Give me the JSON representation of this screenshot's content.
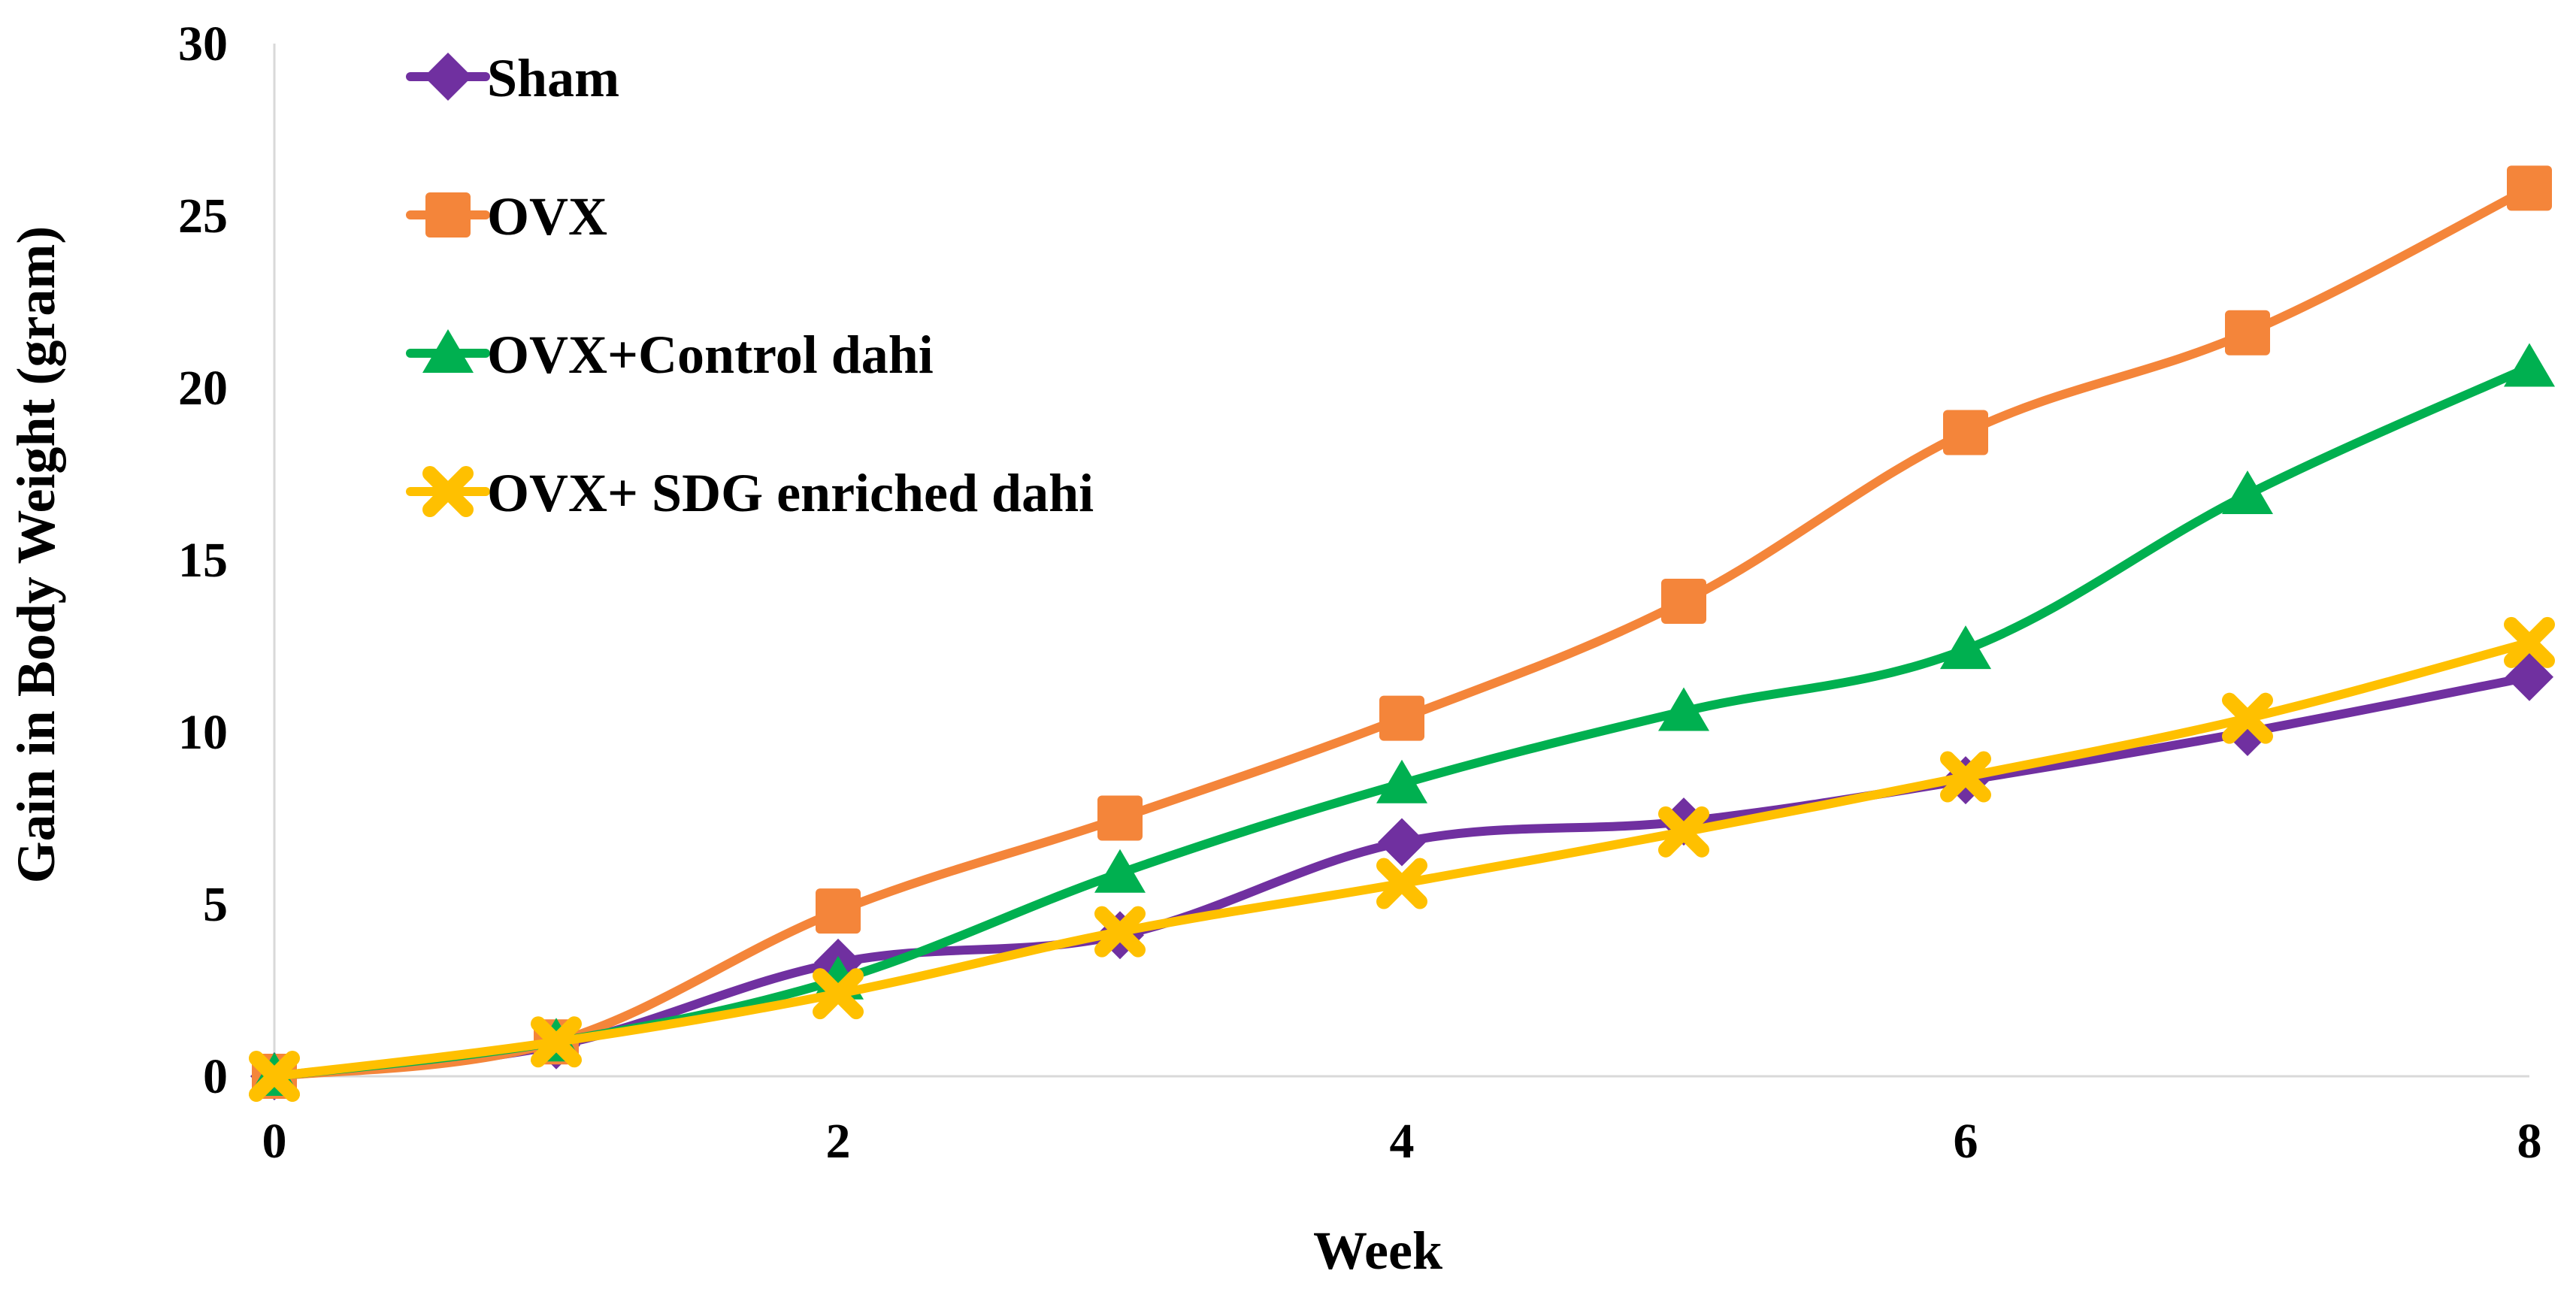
{
  "chart_data": {
    "type": "line",
    "title": "",
    "xlabel": "Week",
    "ylabel": "Gain in Body Weight (gram)",
    "xlim": [
      0,
      8
    ],
    "ylim": [
      0,
      30
    ],
    "x_ticks": [
      0,
      2,
      4,
      6,
      8
    ],
    "y_ticks": [
      0,
      5,
      10,
      15,
      20,
      25,
      30
    ],
    "grid": false,
    "legend_position": "top-left",
    "x": [
      0,
      1,
      2,
      3,
      4,
      5,
      6,
      7,
      8
    ],
    "series": [
      {
        "name": "Sham",
        "color": "#7030A0",
        "marker": "diamond",
        "values": [
          0,
          0.9,
          3.3,
          4.1,
          6.8,
          7.4,
          8.6,
          10.0,
          11.6
        ]
      },
      {
        "name": "OVX",
        "color": "#F4853A",
        "marker": "square",
        "values": [
          0,
          1.0,
          4.8,
          7.5,
          10.4,
          13.8,
          18.7,
          21.6,
          25.8
        ]
      },
      {
        "name": "OVX+Control dahi",
        "color": "#00B050",
        "marker": "triangle",
        "values": [
          0,
          1.0,
          2.8,
          5.9,
          8.5,
          10.6,
          12.4,
          16.9,
          20.6
        ]
      },
      {
        "name": "OVX+ SDG enriched dahi",
        "color": "#FFC000",
        "marker": "x",
        "values": [
          0,
          1.0,
          2.4,
          4.2,
          5.6,
          7.1,
          8.7,
          10.4,
          12.6
        ]
      }
    ]
  }
}
